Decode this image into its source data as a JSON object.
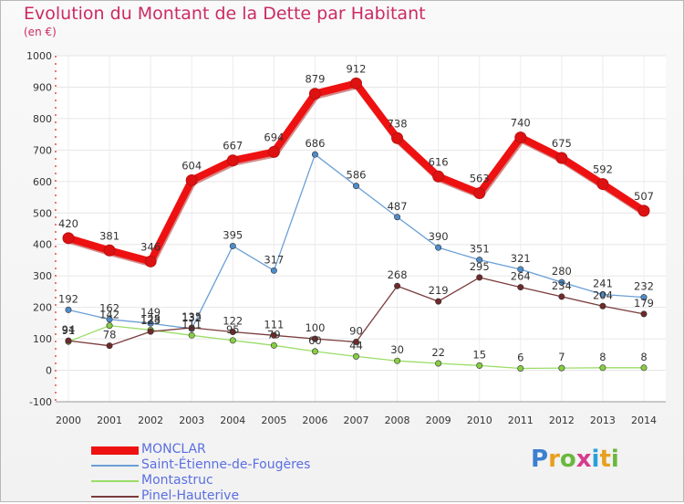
{
  "chart_data": {
    "type": "line",
    "title": "Evolution du Montant de la Dette par Habitant",
    "subtitle": "(en €)",
    "xlabel": "",
    "ylabel": "",
    "ylim": [
      -100,
      1000
    ],
    "yticks": [
      -100,
      0,
      100,
      200,
      300,
      400,
      500,
      600,
      700,
      800,
      900,
      1000
    ],
    "categories": [
      "2000",
      "2001",
      "2002",
      "2003",
      "2004",
      "2005",
      "2006",
      "2007",
      "2008",
      "2009",
      "2010",
      "2011",
      "2012",
      "2013",
      "2014"
    ],
    "series": [
      {
        "name": "MONCLAR",
        "color": "#ee1111",
        "marker": "#dd1111",
        "width": 8,
        "values": [
          420,
          381,
          346,
          604,
          667,
          694,
          879,
          912,
          738,
          616,
          563,
          740,
          675,
          592,
          507
        ]
      },
      {
        "name": "Saint-Étienne-de-Fougères",
        "color": "#6a9fd6",
        "marker": "#4f8cc9",
        "width": 1.3,
        "values": [
          192,
          162,
          149,
          132,
          395,
          317,
          686,
          586,
          487,
          390,
          351,
          321,
          280,
          241,
          232
        ]
      },
      {
        "name": "Montastruc",
        "color": "#99dd66",
        "marker": "#88cc44",
        "width": 1.3,
        "values": [
          91,
          142,
          128,
          111,
          95,
          79,
          60,
          44,
          30,
          22,
          15,
          6,
          7,
          8,
          8
        ]
      },
      {
        "name": "Pinel-Hauterive",
        "color": "#7a3b3b",
        "marker": "#6e2a2a",
        "width": 1.3,
        "values": [
          94,
          78,
          123,
          135,
          122,
          111,
          100,
          90,
          268,
          219,
          295,
          264,
          234,
          204,
          179
        ]
      }
    ],
    "legend_position": "bottom-left"
  },
  "logo": {
    "text": "Proxiti",
    "letter_colors": [
      "#3b7fd0",
      "#e8a020",
      "#6ab83e",
      "#d63b8f",
      "#2aa0d8",
      "#e8a020",
      "#6ab83e"
    ]
  }
}
